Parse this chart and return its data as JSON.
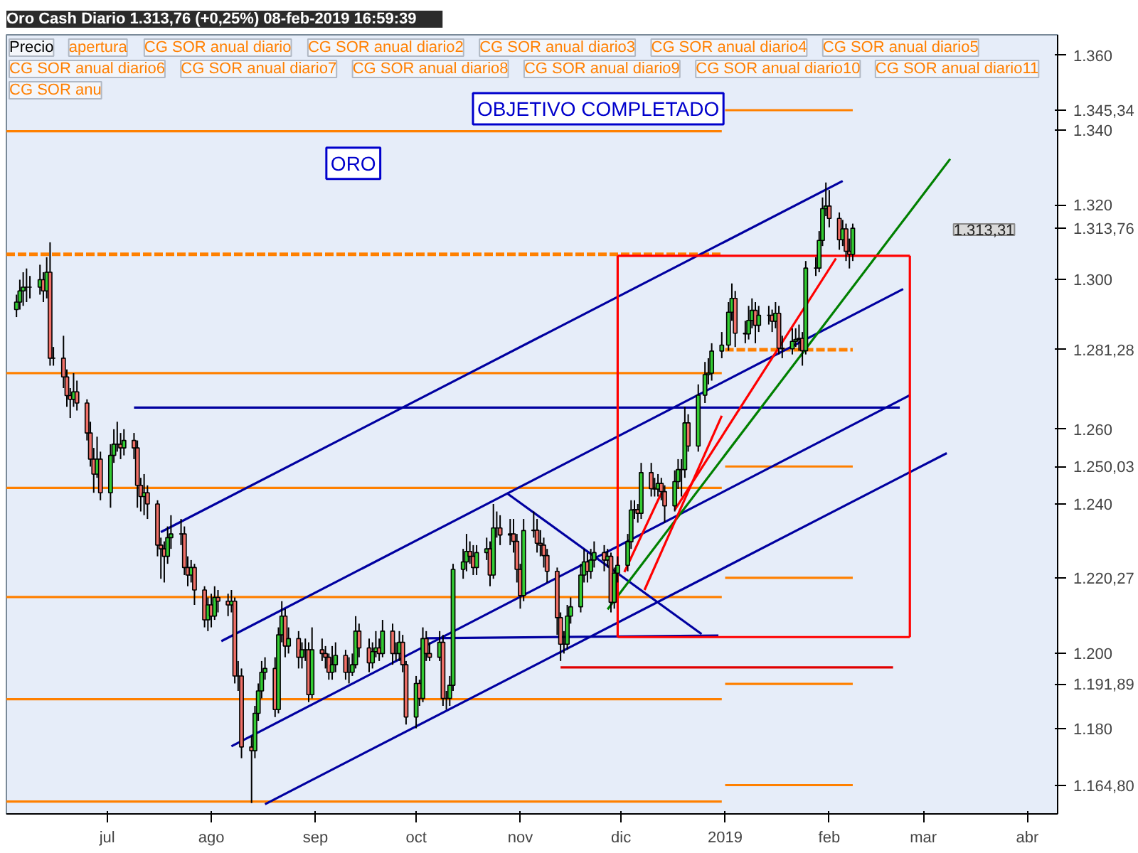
{
  "chart_data": {
    "type": "candlestick",
    "title": "Oro Cash   Diario   1.313,76 (+0,25%)   08-feb-2019 16:59:39",
    "x": [
      "2018-06-04",
      "2018-06-05",
      "2018-06-06",
      "2018-06-07",
      "2018-06-08",
      "2018-06-11",
      "2018-06-12",
      "2018-06-13",
      "2018-06-14",
      "2018-06-15",
      "2018-06-18",
      "2018-06-19",
      "2018-06-20",
      "2018-06-21",
      "2018-06-22",
      "2018-06-25",
      "2018-06-26",
      "2018-06-27",
      "2018-06-28",
      "2018-06-29",
      "2018-07-02",
      "2018-07-03",
      "2018-07-04",
      "2018-07-05",
      "2018-07-06",
      "2018-07-09",
      "2018-07-10",
      "2018-07-11",
      "2018-07-12",
      "2018-07-13",
      "2018-07-16",
      "2018-07-17",
      "2018-07-18",
      "2018-07-19",
      "2018-07-20",
      "2018-07-23",
      "2018-07-24",
      "2018-07-25",
      "2018-07-26",
      "2018-07-27",
      "2018-07-30",
      "2018-07-31",
      "2018-08-01",
      "2018-08-02",
      "2018-08-03",
      "2018-08-06",
      "2018-08-07",
      "2018-08-08",
      "2018-08-09",
      "2018-08-10",
      "2018-08-13",
      "2018-08-14",
      "2018-08-15",
      "2018-08-16",
      "2018-08-17",
      "2018-08-20",
      "2018-08-21",
      "2018-08-22",
      "2018-08-23",
      "2018-08-24",
      "2018-08-27",
      "2018-08-28",
      "2018-08-29",
      "2018-08-30",
      "2018-08-31",
      "2018-09-03",
      "2018-09-04",
      "2018-09-05",
      "2018-09-06",
      "2018-09-07",
      "2018-09-10",
      "2018-09-11",
      "2018-09-12",
      "2018-09-13",
      "2018-09-14",
      "2018-09-17",
      "2018-09-18",
      "2018-09-19",
      "2018-09-20",
      "2018-09-21",
      "2018-09-24",
      "2018-09-25",
      "2018-09-26",
      "2018-09-27",
      "2018-09-28",
      "2018-10-01",
      "2018-10-02",
      "2018-10-03",
      "2018-10-04",
      "2018-10-05",
      "2018-10-08",
      "2018-10-09",
      "2018-10-10",
      "2018-10-11",
      "2018-10-12",
      "2018-10-15",
      "2018-10-16",
      "2018-10-17",
      "2018-10-18",
      "2018-10-19",
      "2018-10-22",
      "2018-10-23",
      "2018-10-24",
      "2018-10-25",
      "2018-10-26",
      "2018-10-29",
      "2018-10-30",
      "2018-10-31",
      "2018-11-01",
      "2018-11-02",
      "2018-11-05",
      "2018-11-06",
      "2018-11-07",
      "2018-11-08",
      "2018-11-09",
      "2018-11-12",
      "2018-11-13",
      "2018-11-14",
      "2018-11-15",
      "2018-11-16",
      "2018-11-19",
      "2018-11-20",
      "2018-11-21",
      "2018-11-22",
      "2018-11-23",
      "2018-11-26",
      "2018-11-27",
      "2018-11-28",
      "2018-11-29",
      "2018-11-30",
      "2018-12-03",
      "2018-12-04",
      "2018-12-05",
      "2018-12-06",
      "2018-12-07",
      "2018-12-10",
      "2018-12-11",
      "2018-12-12",
      "2018-12-13",
      "2018-12-14",
      "2018-12-17",
      "2018-12-18",
      "2018-12-19",
      "2018-12-20",
      "2018-12-21",
      "2018-12-24",
      "2018-12-26",
      "2018-12-27",
      "2018-12-28",
      "2018-12-31",
      "2019-01-02",
      "2019-01-03",
      "2019-01-04",
      "2019-01-07",
      "2019-01-08",
      "2019-01-09",
      "2019-01-10",
      "2019-01-11",
      "2019-01-14",
      "2019-01-15",
      "2019-01-16",
      "2019-01-17",
      "2019-01-18",
      "2019-01-21",
      "2019-01-22",
      "2019-01-23",
      "2019-01-24",
      "2019-01-25",
      "2019-01-28",
      "2019-01-29",
      "2019-01-30",
      "2019-01-31",
      "2019-02-01",
      "2019-02-04",
      "2019-02-05",
      "2019-02-06",
      "2019-02-07",
      "2019-02-08"
    ],
    "ohlc": [
      [
        1292,
        1296,
        1290,
        1294
      ],
      [
        1294,
        1300,
        1292,
        1297
      ],
      [
        1297,
        1302,
        1293,
        1298
      ],
      [
        1298,
        1303,
        1294,
        1298
      ],
      [
        1298,
        1301,
        1295,
        1298
      ],
      [
        1298,
        1304,
        1296,
        1300
      ],
      [
        1300,
        1302,
        1294,
        1297
      ],
      [
        1297,
        1306,
        1295,
        1302
      ],
      [
        1302,
        1310,
        1277,
        1279
      ],
      [
        1279,
        1282,
        1277,
        1279
      ],
      [
        1279,
        1285,
        1271,
        1274
      ],
      [
        1274,
        1276,
        1266,
        1269
      ],
      [
        1269,
        1271,
        1263,
        1268
      ],
      [
        1268,
        1275,
        1266,
        1270
      ],
      [
        1270,
        1273,
        1265,
        1267
      ],
      [
        1267,
        1268,
        1257,
        1259
      ],
      [
        1259,
        1262,
        1250,
        1252
      ],
      [
        1252,
        1255,
        1243,
        1248
      ],
      [
        1248,
        1258,
        1247,
        1252
      ],
      [
        1252,
        1254,
        1241,
        1243
      ],
      [
        1243,
        1256,
        1239,
        1253
      ],
      [
        1253,
        1260,
        1251,
        1256
      ],
      [
        1256,
        1262,
        1254,
        1256
      ],
      [
        1256,
        1259,
        1252,
        1255
      ],
      [
        1255,
        1260,
        1253,
        1257
      ],
      [
        1257,
        1259,
        1252,
        1255
      ],
      [
        1255,
        1257,
        1239,
        1245
      ],
      [
        1245,
        1247,
        1238,
        1242
      ],
      [
        1242,
        1248,
        1237,
        1243
      ],
      [
        1243,
        1245,
        1236,
        1240
      ],
      [
        1240,
        1241,
        1226,
        1229
      ],
      [
        1229,
        1231,
        1220,
        1228
      ],
      [
        1228,
        1230,
        1219,
        1226
      ],
      [
        1226,
        1234,
        1224,
        1231
      ],
      [
        1231,
        1237,
        1228,
        1232
      ],
      [
        1232,
        1236,
        1229,
        1232
      ],
      [
        1232,
        1234,
        1221,
        1223
      ],
      [
        1223,
        1226,
        1218,
        1221
      ],
      [
        1221,
        1225,
        1219,
        1223
      ],
      [
        1223,
        1224,
        1213,
        1217
      ],
      [
        1217,
        1218,
        1207,
        1209
      ],
      [
        1209,
        1215,
        1206,
        1213
      ],
      [
        1213,
        1216,
        1207,
        1210
      ],
      [
        1210,
        1218,
        1209,
        1215
      ],
      [
        1215,
        1217,
        1211,
        1214
      ],
      [
        1214,
        1216,
        1210,
        1213
      ],
      [
        1213,
        1217,
        1211,
        1214
      ],
      [
        1214,
        1215,
        1192,
        1194
      ],
      [
        1194,
        1198,
        1190,
        1194
      ],
      [
        1194,
        1196,
        1172,
        1175
      ],
      [
        1175,
        1178,
        1160,
        1174
      ],
      [
        1174,
        1186,
        1172,
        1184
      ],
      [
        1184,
        1192,
        1182,
        1190
      ],
      [
        1190,
        1198,
        1188,
        1195
      ],
      [
        1195,
        1199,
        1193,
        1196
      ],
      [
        1196,
        1199,
        1183,
        1185
      ],
      [
        1185,
        1207,
        1184,
        1205
      ],
      [
        1205,
        1214,
        1203,
        1210
      ],
      [
        1210,
        1212,
        1199,
        1202
      ],
      [
        1202,
        1207,
        1200,
        1204
      ],
      [
        1204,
        1206,
        1196,
        1199
      ],
      [
        1199,
        1203,
        1196,
        1201
      ],
      [
        1201,
        1204,
        1198,
        1201
      ],
      [
        1201,
        1203,
        1187,
        1189
      ],
      [
        1189,
        1207,
        1188,
        1201
      ],
      [
        1201,
        1204,
        1198,
        1200
      ],
      [
        1200,
        1202,
        1196,
        1199
      ],
      [
        1199,
        1200,
        1193,
        1195
      ],
      [
        1195,
        1202,
        1193,
        1197
      ],
      [
        1197,
        1203,
        1195,
        1199.5
      ],
      [
        1199.5,
        1201,
        1193,
        1195
      ],
      [
        1195,
        1199,
        1192,
        1195
      ],
      [
        1195,
        1200,
        1194,
        1197
      ],
      [
        1197,
        1210,
        1196,
        1206
      ],
      [
        1206,
        1208,
        1199,
        1201.5
      ],
      [
        1201.5,
        1204,
        1195,
        1197.5
      ],
      [
        1197.5,
        1203,
        1196,
        1200.5
      ],
      [
        1200.5,
        1206,
        1199,
        1201.5
      ],
      [
        1201.5,
        1204,
        1198,
        1200
      ],
      [
        1200,
        1209,
        1199,
        1206
      ],
      [
        1206,
        1208,
        1197,
        1200
      ],
      [
        1200,
        1203,
        1198,
        1200
      ],
      [
        1200,
        1206,
        1198,
        1203
      ],
      [
        1203,
        1205,
        1195,
        1197
      ],
      [
        1197,
        1198,
        1181,
        1183
      ],
      [
        1183,
        1194,
        1180,
        1192
      ],
      [
        1192,
        1193,
        1186,
        1188
      ],
      [
        1188,
        1207,
        1187,
        1204
      ],
      [
        1204,
        1206,
        1198,
        1200
      ],
      [
        1200,
        1203,
        1198,
        1199
      ],
      [
        1199,
        1206,
        1198,
        1203
      ],
      [
        1203,
        1205,
        1186,
        1188
      ],
      [
        1188,
        1190,
        1185,
        1188
      ],
      [
        1188,
        1194,
        1186,
        1191.5
      ],
      [
        1191.5,
        1224,
        1190,
        1222.5
      ],
      [
        1222.5,
        1228,
        1220,
        1224.5
      ],
      [
        1224.5,
        1232,
        1222,
        1227.3
      ],
      [
        1227.3,
        1230,
        1224,
        1226
      ],
      [
        1226,
        1229,
        1221,
        1223
      ],
      [
        1223,
        1229,
        1221,
        1227
      ],
      [
        1227,
        1231,
        1225,
        1228
      ],
      [
        1228,
        1230,
        1218,
        1221
      ],
      [
        1221,
        1240,
        1220,
        1233.6
      ],
      [
        1233.6,
        1238,
        1231,
        1233.6
      ],
      [
        1233.6,
        1237,
        1229,
        1231.7
      ],
      [
        1231.7,
        1236,
        1229,
        1232
      ],
      [
        1232,
        1236,
        1227,
        1230
      ],
      [
        1230,
        1232,
        1219,
        1222.5
      ],
      [
        1222.5,
        1224,
        1212,
        1215.5
      ],
      [
        1215.5,
        1236,
        1214,
        1232.9
      ],
      [
        1232.9,
        1238,
        1231,
        1233
      ],
      [
        1233,
        1236,
        1227,
        1229.5
      ],
      [
        1229.5,
        1233,
        1226,
        1229
      ],
      [
        1229,
        1231,
        1223,
        1226.2
      ],
      [
        1226.2,
        1228,
        1219,
        1222
      ],
      [
        1222,
        1223,
        1205,
        1209.6
      ],
      [
        1209.6,
        1211,
        1198,
        1202.5
      ],
      [
        1202.5,
        1206,
        1200,
        1202.5
      ],
      [
        1202.5,
        1213,
        1201,
        1210
      ],
      [
        1210,
        1215,
        1208,
        1212.5
      ],
      [
        1212.5,
        1224,
        1211,
        1221
      ],
      [
        1221,
        1228,
        1219,
        1224.5
      ],
      [
        1224.5,
        1227,
        1219,
        1222
      ],
      [
        1222,
        1228,
        1220,
        1225
      ],
      [
        1225,
        1230,
        1223,
        1227
      ],
      [
        1227,
        1229,
        1222,
        1225
      ],
      [
        1225,
        1228,
        1223,
        1226
      ],
      [
        1226,
        1227,
        1211,
        1213.7
      ],
      [
        1213.7,
        1223,
        1212,
        1221.5
      ],
      [
        1221.5,
        1226,
        1219,
        1223.6
      ],
      [
        1223.6,
        1232,
        1222,
        1229.9
      ],
      [
        1229.9,
        1241,
        1228,
        1238.4
      ],
      [
        1238.4,
        1241,
        1236,
        1238.5
      ],
      [
        1238.5,
        1240,
        1235,
        1237.5
      ],
      [
        1237.5,
        1251,
        1236,
        1248.4
      ],
      [
        1248.4,
        1251,
        1242,
        1244.1
      ],
      [
        1244.1,
        1247,
        1242,
        1244
      ],
      [
        1244,
        1248,
        1242,
        1245.5
      ],
      [
        1245.5,
        1247,
        1241,
        1243.3
      ],
      [
        1243.3,
        1245,
        1235,
        1239.5
      ],
      [
        1239.5,
        1249,
        1238,
        1246
      ],
      [
        1246,
        1252,
        1244,
        1249.2
      ],
      [
        1249.2,
        1252,
        1242,
        1249.2
      ],
      [
        1249.2,
        1266,
        1247,
        1261.7
      ],
      [
        1261.7,
        1264,
        1254,
        1255.5
      ],
      [
        1255.5,
        1272,
        1254,
        1269.1
      ],
      [
        1269.1,
        1278,
        1267,
        1274.6
      ],
      [
        1274.6,
        1279,
        1272,
        1275
      ],
      [
        1275,
        1283,
        1273,
        1280.9
      ],
      [
        1280.9,
        1286,
        1279,
        1282.5
      ],
      [
        1282.5,
        1294,
        1281,
        1291.3
      ],
      [
        1291.3,
        1299,
        1289,
        1295
      ],
      [
        1295,
        1297,
        1282,
        1285.7
      ],
      [
        1285.7,
        1289,
        1283,
        1285.5
      ],
      [
        1285.5,
        1293,
        1284,
        1289.1
      ],
      [
        1289.1,
        1295,
        1287,
        1291.8
      ],
      [
        1291.8,
        1294,
        1283,
        1287.8
      ],
      [
        1287.8,
        1293,
        1286,
        1290.5
      ],
      [
        1290.5,
        1293,
        1288,
        1290.5
      ],
      [
        1290.5,
        1292,
        1286,
        1288.9
      ],
      [
        1288.9,
        1294,
        1287,
        1291
      ],
      [
        1291,
        1293,
        1280,
        1281.7
      ],
      [
        1281.7,
        1285,
        1279,
        1281.5
      ],
      [
        1281.5,
        1287,
        1280,
        1283.5
      ],
      [
        1283.5,
        1287,
        1282,
        1284
      ],
      [
        1284,
        1288,
        1281,
        1284.3
      ],
      [
        1284.3,
        1286,
        1277,
        1281
      ],
      [
        1281,
        1305,
        1280,
        1303.1
      ],
      [
        1303.1,
        1306,
        1301,
        1303.1
      ],
      [
        1303.1,
        1313,
        1302,
        1310.5
      ],
      [
        1310.5,
        1322,
        1309,
        1319
      ],
      [
        1319,
        1326,
        1317,
        1319.7
      ],
      [
        1319.7,
        1324,
        1314,
        1316.4
      ],
      [
        1316.4,
        1318,
        1308,
        1310.7
      ],
      [
        1310.7,
        1316,
        1309,
        1313.6
      ],
      [
        1313.6,
        1315,
        1305,
        1307.6
      ],
      [
        1307.6,
        1311,
        1303,
        1306.8
      ],
      [
        1306.8,
        1315,
        1305,
        1313.76
      ]
    ],
    "series": [
      {
        "type": "line",
        "x": [
          "2018-06-01",
          "2018-12-31"
        ],
        "values": [
          1339.7,
          1339.7
        ],
        "color": "#ff8000",
        "line_style": "solid"
      },
      {
        "type": "line",
        "x": [
          "2018-06-01",
          "2018-12-31"
        ],
        "values": [
          1306.8,
          1306.8
        ],
        "color": "#ff8000",
        "line_style": "dashed"
      },
      {
        "type": "line",
        "x": [
          "2018-06-01",
          "2018-12-31"
        ],
        "values": [
          1275,
          1275
        ],
        "color": "#ff8000",
        "line_style": "solid"
      },
      {
        "type": "line",
        "x": [
          "2018-06-01",
          "2018-12-31"
        ],
        "values": [
          1244.3,
          1244.3
        ],
        "color": "#ff8000",
        "line_style": "solid"
      },
      {
        "type": "line",
        "x": [
          "2018-06-01",
          "2018-12-31"
        ],
        "values": [
          1215.1,
          1215.1
        ],
        "color": "#ff8000",
        "line_style": "solid"
      },
      {
        "type": "line",
        "x": [
          "2018-06-01",
          "2018-12-31"
        ],
        "values": [
          1187.8,
          1187.8
        ],
        "color": "#ff8000",
        "line_style": "solid"
      },
      {
        "type": "line",
        "x": [
          "2018-06-01",
          "2018-12-31"
        ],
        "values": [
          1160.4,
          1160.4
        ],
        "color": "#ff8000",
        "line_style": "solid"
      },
      {
        "type": "line",
        "x": [
          "2019-01-01",
          "2019-02-08"
        ],
        "values": [
          1345.34,
          1345.34
        ],
        "color": "#ff8000",
        "line_style": "solid"
      },
      {
        "type": "line",
        "x": [
          "2019-01-01",
          "2019-02-08"
        ],
        "values": [
          1281.28,
          1281.28
        ],
        "color": "#ff8000",
        "line_style": "dashed"
      },
      {
        "type": "line",
        "x": [
          "2019-01-01",
          "2019-02-08"
        ],
        "values": [
          1250.03,
          1250.03
        ],
        "color": "#ff8000",
        "line_style": "solid"
      },
      {
        "type": "line",
        "x": [
          "2019-01-01",
          "2019-02-08"
        ],
        "values": [
          1220.27,
          1220.27
        ],
        "color": "#ff8000",
        "line_style": "solid"
      },
      {
        "type": "line",
        "x": [
          "2019-01-01",
          "2019-02-08"
        ],
        "values": [
          1191.89,
          1191.89
        ],
        "color": "#ff8000",
        "line_style": "solid"
      },
      {
        "type": "line",
        "x": [
          "2019-01-01",
          "2019-02-08"
        ],
        "values": [
          1164.8,
          1164.8
        ],
        "color": "#ff8000",
        "line_style": "solid"
      },
      {
        "type": "line",
        "x": [
          "2018-07-17",
          "2019-02-05"
        ],
        "values": [
          1232.5,
          1326.4
        ],
        "color": "#0000a0",
        "line_style": "solid"
      },
      {
        "type": "line",
        "x": [
          "2018-08-04",
          "2019-02-23"
        ],
        "values": [
          1203.3,
          1297.5
        ],
        "color": "#0000a0",
        "line_style": "solid"
      },
      {
        "type": "line",
        "x": [
          "2018-08-07",
          "2019-02-25"
        ],
        "values": [
          1175.2,
          1269.1
        ],
        "color": "#0000a0",
        "line_style": "solid"
      },
      {
        "type": "line",
        "x": [
          "2018-08-17",
          "2019-03-08"
        ],
        "values": [
          1159.7,
          1253.6
        ],
        "color": "#0000a0",
        "line_style": "solid"
      },
      {
        "type": "line",
        "x": [
          "2018-07-09",
          "2019-02-22"
        ],
        "values": [
          1265.8,
          1265.8
        ],
        "color": "#0000a0",
        "line_style": "solid"
      },
      {
        "type": "line",
        "x": [
          "2018-10-04",
          "2018-12-30"
        ],
        "values": [
          1204.1,
          1204.8
        ],
        "color": "#0000a0",
        "line_style": "solid"
      },
      {
        "type": "line",
        "x": [
          "2018-10-28",
          "2018-12-25"
        ],
        "values": [
          1242.9,
          1205.2
        ],
        "color": "#0000a0",
        "line_style": "solid"
      },
      {
        "type": "line",
        "x": [
          "2018-11-27",
          "2019-03-09"
        ],
        "values": [
          1211.8,
          1332.3
        ],
        "color": "#008000",
        "line_style": "solid"
      },
      {
        "type": "line",
        "x": [
          "2018-12-02",
          "2018-12-13"
        ],
        "values": [
          1221.8,
          1242.9
        ],
        "color": "#ff0000",
        "line_style": "solid"
      },
      {
        "type": "line",
        "x": [
          "2018-12-08",
          "2018-12-31"
        ],
        "values": [
          1217,
          1263.6
        ],
        "color": "#ff0000",
        "line_style": "solid"
      },
      {
        "type": "line",
        "x": [
          "2018-12-17",
          "2019-02-03"
        ],
        "values": [
          1238.4,
          1305.7
        ],
        "color": "#ff0000",
        "line_style": "solid"
      },
      {
        "type": "line",
        "x": [
          "2018-11-13",
          "2019-02-20"
        ],
        "values": [
          1196.3,
          1196.3
        ],
        "color": "#e00000",
        "line_style": "solid"
      },
      {
        "type": "line",
        "x": [
          "2018-11-30",
          "2019-02-25"
        ],
        "values": [
          1306.4,
          1306.4
        ],
        "color": "#ff0000",
        "line_style": "solid"
      },
      {
        "type": "line",
        "x": [
          "2018-11-30",
          "2019-02-25"
        ],
        "values": [
          1204.4,
          1204.4
        ],
        "color": "#ff0000",
        "line_style": "solid"
      },
      {
        "type": "line",
        "x": [
          "2018-11-30",
          "2018-11-30"
        ],
        "values": [
          1204.4,
          1306.4
        ],
        "color": "#ff0000",
        "line_style": "solid"
      },
      {
        "type": "line",
        "x": [
          "2019-02-25",
          "2019-02-25"
        ],
        "values": [
          1204.4,
          1306.4
        ],
        "color": "#ff0000",
        "line_style": "solid"
      }
    ],
    "xlim": [
      "2018-06-01",
      "2019-04-10"
    ],
    "ylim": [
      1157.1,
      1365.5
    ],
    "xticks": [
      {
        "value": "2018-07-01",
        "label": "jul"
      },
      {
        "value": "2018-08-01",
        "label": "ago"
      },
      {
        "value": "2018-09-01",
        "label": "sep"
      },
      {
        "value": "2018-10-01",
        "label": "oct"
      },
      {
        "value": "2018-11-01",
        "label": "nov"
      },
      {
        "value": "2018-12-01",
        "label": "dic"
      },
      {
        "value": "2019-01-01",
        "label": "2019"
      },
      {
        "value": "2019-02-01",
        "label": "feb"
      },
      {
        "value": "2019-03-01",
        "label": "mar"
      },
      {
        "value": "2019-04-01",
        "label": "abr"
      }
    ],
    "yticks": [
      {
        "value": 1360,
        "label": "1.360"
      },
      {
        "value": 1345.34,
        "label": "1.345,34"
      },
      {
        "value": 1340,
        "label": "1.340"
      },
      {
        "value": 1320,
        "label": "1.320"
      },
      {
        "value": 1313.76,
        "label": "1.313,76"
      },
      {
        "value": 1300,
        "label": "1.300"
      },
      {
        "value": 1281.28,
        "label": "1.281,28"
      },
      {
        "value": 1260,
        "label": "1.260"
      },
      {
        "value": 1250.03,
        "label": "1.250,03"
      },
      {
        "value": 1240,
        "label": "1.240"
      },
      {
        "value": 1220.27,
        "label": "1.220,27"
      },
      {
        "value": 1200,
        "label": "1.200"
      },
      {
        "value": 1191.89,
        "label": "1.191,89"
      },
      {
        "value": 1180,
        "label": "1.180"
      },
      {
        "value": 1164.8,
        "label": "1.164,80"
      }
    ],
    "annotations": [
      "Precio",
      "apertura",
      "CG SOR anual diario",
      "CG SOR anual diario2",
      "CG SOR anual diario3",
      "CG SOR anual diario4",
      "CG SOR anual diario5",
      "CG SOR anual diario6",
      "CG SOR anual diario7",
      "CG SOR anual diario8",
      "CG SOR anual diario9",
      "CG SOR anual diario10",
      "CG SOR anual diario11",
      "CG SOR anu",
      "ORO",
      "OBJETIVO COMPLETADO",
      "1.313,31"
    ],
    "grid": false
  }
}
